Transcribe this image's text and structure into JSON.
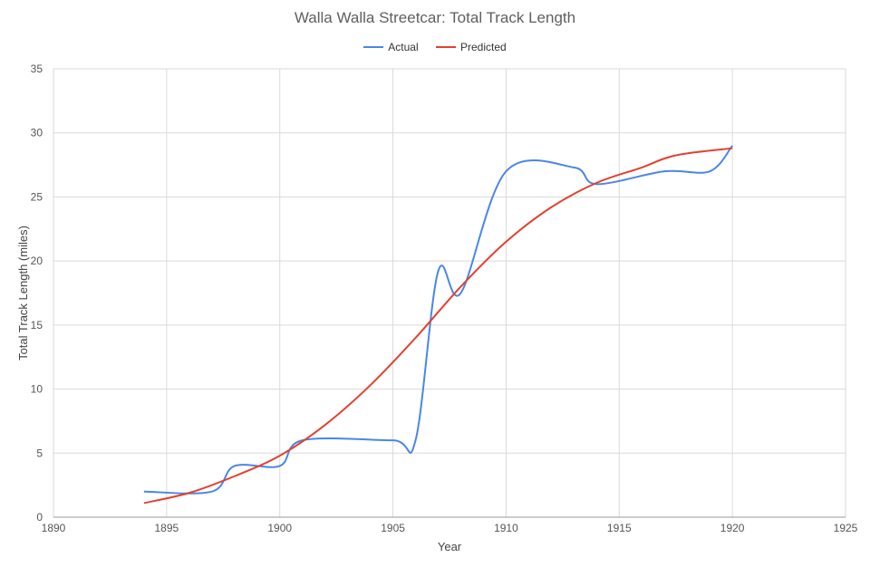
{
  "chart_data": {
    "type": "line",
    "title": "Walla Walla Streetcar: Total Track Length",
    "xlabel": "Year",
    "ylabel": "Total Track Length (miles)",
    "xlim": [
      1890,
      1925
    ],
    "ylim": [
      0,
      35
    ],
    "xticks": [
      1890,
      1895,
      1900,
      1905,
      1910,
      1915,
      1920,
      1925
    ],
    "yticks": [
      0,
      5,
      10,
      15,
      20,
      25,
      30,
      35
    ],
    "grid": true,
    "legend_position": "top",
    "series": [
      {
        "name": "Actual",
        "color": "#4a86e8",
        "smooth": true,
        "x": [
          1894,
          1897,
          1898,
          1900,
          1901,
          1905,
          1906,
          1907,
          1908,
          1910,
          1913,
          1914,
          1917,
          1919,
          1920
        ],
        "y": [
          2,
          2,
          4,
          4,
          6,
          6,
          6,
          19.2,
          17.5,
          27,
          27.3,
          26,
          27,
          27,
          29
        ]
      },
      {
        "name": "Predicted",
        "color": "#e2412f",
        "smooth": true,
        "x": [
          1894,
          1896,
          1898,
          1900,
          1902,
          1904,
          1906,
          1908,
          1910,
          1912,
          1914,
          1916,
          1917,
          1918,
          1920
        ],
        "y": [
          1.1,
          1.9,
          3.2,
          4.8,
          7.2,
          10.3,
          14,
          18,
          21.5,
          24.2,
          26.1,
          27.3,
          28,
          28.4,
          28.8
        ]
      }
    ]
  }
}
